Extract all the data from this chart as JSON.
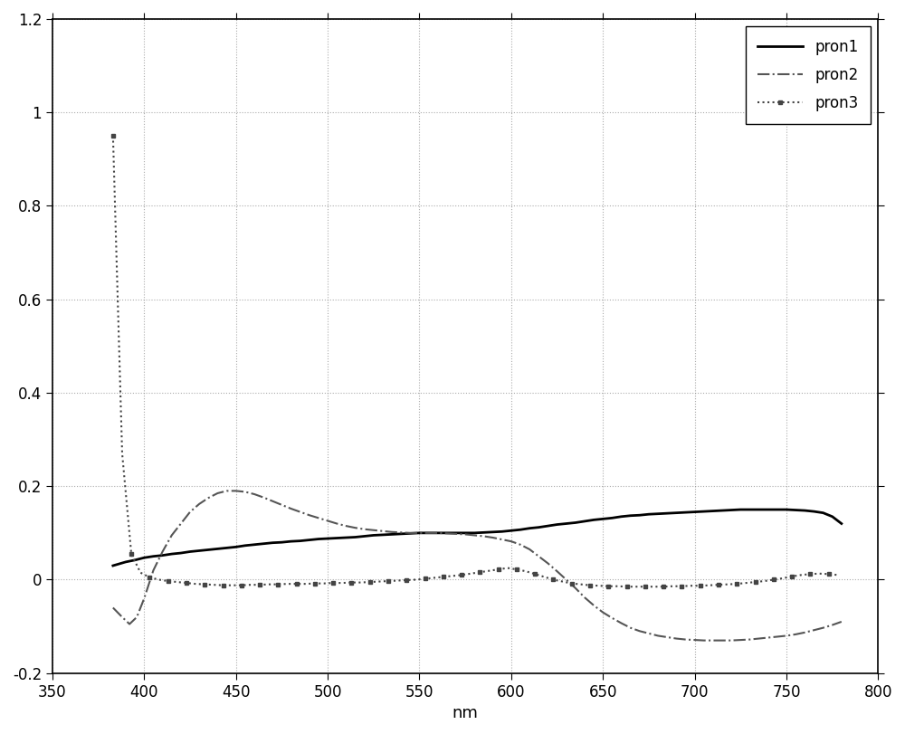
{
  "xlim": [
    350,
    800
  ],
  "ylim": [
    -0.2,
    1.2
  ],
  "xlabel": "nm",
  "xticks": [
    350,
    400,
    450,
    500,
    550,
    600,
    650,
    700,
    750,
    800
  ],
  "yticks": [
    -0.2,
    0.0,
    0.2,
    0.4,
    0.6,
    0.8,
    1.0,
    1.2
  ],
  "grid_color": "#888888",
  "background_color": "#ffffff",
  "legend_labels": [
    "pron1",
    "pron2",
    "pron3"
  ],
  "pron1": {
    "x": [
      383,
      390,
      395,
      400,
      405,
      410,
      415,
      420,
      425,
      430,
      435,
      440,
      445,
      450,
      455,
      460,
      465,
      470,
      475,
      480,
      485,
      490,
      495,
      500,
      505,
      510,
      515,
      520,
      525,
      530,
      535,
      540,
      545,
      550,
      555,
      560,
      565,
      570,
      575,
      580,
      585,
      590,
      595,
      600,
      605,
      610,
      615,
      620,
      625,
      630,
      635,
      640,
      645,
      650,
      655,
      660,
      665,
      670,
      675,
      680,
      685,
      690,
      695,
      700,
      705,
      710,
      715,
      720,
      725,
      730,
      735,
      740,
      745,
      750,
      755,
      760,
      765,
      770,
      775,
      780
    ],
    "y": [
      0.03,
      0.038,
      0.042,
      0.047,
      0.05,
      0.052,
      0.055,
      0.057,
      0.06,
      0.062,
      0.064,
      0.066,
      0.068,
      0.07,
      0.073,
      0.075,
      0.077,
      0.079,
      0.08,
      0.082,
      0.083,
      0.085,
      0.087,
      0.088,
      0.089,
      0.09,
      0.091,
      0.093,
      0.095,
      0.096,
      0.097,
      0.098,
      0.099,
      0.1,
      0.1,
      0.1,
      0.1,
      0.1,
      0.1,
      0.1,
      0.101,
      0.102,
      0.103,
      0.105,
      0.107,
      0.11,
      0.112,
      0.115,
      0.118,
      0.12,
      0.122,
      0.125,
      0.128,
      0.13,
      0.132,
      0.135,
      0.137,
      0.138,
      0.14,
      0.141,
      0.142,
      0.143,
      0.144,
      0.145,
      0.146,
      0.147,
      0.148,
      0.149,
      0.15,
      0.15,
      0.15,
      0.15,
      0.15,
      0.15,
      0.149,
      0.148,
      0.146,
      0.143,
      0.135,
      0.12
    ],
    "color": "#000000",
    "linestyle": "-",
    "linewidth": 2.0
  },
  "pron2": {
    "x": [
      383,
      388,
      392,
      396,
      400,
      405,
      410,
      415,
      420,
      425,
      430,
      435,
      440,
      445,
      450,
      455,
      460,
      465,
      470,
      475,
      480,
      485,
      490,
      495,
      500,
      505,
      510,
      515,
      520,
      525,
      530,
      535,
      540,
      545,
      550,
      555,
      560,
      565,
      570,
      575,
      580,
      585,
      590,
      595,
      600,
      605,
      610,
      615,
      620,
      625,
      630,
      635,
      640,
      645,
      650,
      655,
      660,
      665,
      670,
      675,
      680,
      685,
      690,
      695,
      700,
      705,
      710,
      715,
      720,
      725,
      730,
      735,
      740,
      745,
      750,
      755,
      760,
      765,
      770,
      775,
      780
    ],
    "y": [
      -0.06,
      -0.08,
      -0.095,
      -0.08,
      -0.04,
      0.02,
      0.06,
      0.095,
      0.12,
      0.145,
      0.162,
      0.175,
      0.185,
      0.19,
      0.19,
      0.188,
      0.183,
      0.176,
      0.168,
      0.16,
      0.152,
      0.145,
      0.138,
      0.132,
      0.126,
      0.12,
      0.115,
      0.111,
      0.108,
      0.106,
      0.104,
      0.102,
      0.101,
      0.1,
      0.1,
      0.1,
      0.1,
      0.099,
      0.098,
      0.097,
      0.095,
      0.093,
      0.09,
      0.086,
      0.082,
      0.075,
      0.065,
      0.05,
      0.035,
      0.018,
      0.0,
      -0.018,
      -0.038,
      -0.055,
      -0.07,
      -0.082,
      -0.093,
      -0.103,
      -0.11,
      -0.115,
      -0.12,
      -0.123,
      -0.126,
      -0.128,
      -0.129,
      -0.13,
      -0.13,
      -0.13,
      -0.13,
      -0.129,
      -0.128,
      -0.126,
      -0.124,
      -0.122,
      -0.12,
      -0.117,
      -0.113,
      -0.108,
      -0.103,
      -0.097,
      -0.09
    ],
    "color": "#555555",
    "linestyle": "-.",
    "linewidth": 1.5
  },
  "pron3": {
    "x": [
      383,
      388,
      393,
      398,
      403,
      408,
      413,
      418,
      423,
      428,
      433,
      438,
      443,
      448,
      453,
      458,
      463,
      468,
      473,
      478,
      483,
      488,
      493,
      498,
      503,
      508,
      513,
      518,
      523,
      528,
      533,
      538,
      543,
      548,
      553,
      558,
      563,
      568,
      573,
      578,
      583,
      588,
      593,
      598,
      603,
      608,
      613,
      618,
      623,
      628,
      633,
      638,
      643,
      648,
      653,
      658,
      663,
      668,
      673,
      678,
      683,
      688,
      693,
      698,
      703,
      708,
      713,
      718,
      723,
      728,
      733,
      738,
      743,
      748,
      753,
      758,
      763,
      768,
      773,
      778
    ],
    "y": [
      0.95,
      0.27,
      0.055,
      0.015,
      0.005,
      0.0,
      -0.003,
      -0.005,
      -0.007,
      -0.009,
      -0.01,
      -0.011,
      -0.012,
      -0.012,
      -0.012,
      -0.011,
      -0.011,
      -0.01,
      -0.01,
      -0.009,
      -0.009,
      -0.009,
      -0.008,
      -0.008,
      -0.007,
      -0.007,
      -0.006,
      -0.006,
      -0.005,
      -0.004,
      -0.003,
      -0.002,
      -0.001,
      0.0,
      0.002,
      0.004,
      0.006,
      0.008,
      0.01,
      0.013,
      0.016,
      0.019,
      0.022,
      0.025,
      0.022,
      0.018,
      0.012,
      0.006,
      0.0,
      -0.004,
      -0.008,
      -0.01,
      -0.012,
      -0.013,
      -0.014,
      -0.014,
      -0.015,
      -0.015,
      -0.015,
      -0.015,
      -0.015,
      -0.014,
      -0.014,
      -0.013,
      -0.013,
      -0.012,
      -0.011,
      -0.01,
      -0.009,
      -0.007,
      -0.005,
      -0.003,
      0.0,
      0.003,
      0.007,
      0.01,
      0.012,
      0.013,
      0.012,
      0.01
    ],
    "color": "#444444",
    "linestyle": ":",
    "linewidth": 1.5,
    "marker": "s",
    "markersize": 2.5,
    "markevery": 2
  },
  "figure_bg": "#e8e8e8",
  "legend_fontsize": 12,
  "tick_labelsize": 12,
  "xlabel_fontsize": 13
}
